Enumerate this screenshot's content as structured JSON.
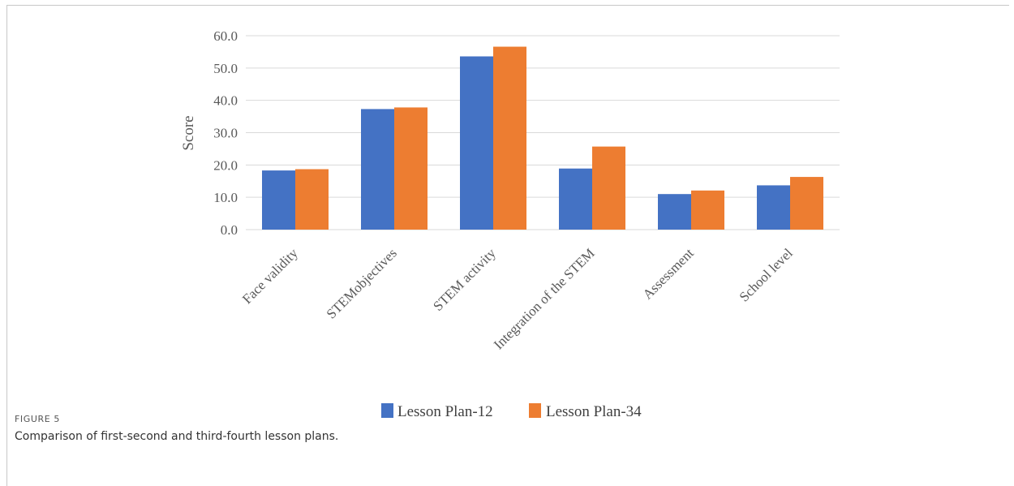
{
  "figure": {
    "label": "FIGURE 5",
    "caption": "Comparison of first-second and third-fourth lesson plans."
  },
  "chart_data": {
    "type": "bar",
    "title": "",
    "xlabel": "",
    "ylabel": "Score",
    "ylim": [
      0,
      60
    ],
    "yticks": [
      "0.0",
      "10.0",
      "20.0",
      "30.0",
      "40.0",
      "50.0",
      "60.0"
    ],
    "grid": "horizontal",
    "legend_position": "bottom",
    "categories": [
      "Face validity",
      "STEMobjectives",
      "STEM activity",
      "Integration of the STEM",
      "Assessment",
      "School level"
    ],
    "series": [
      {
        "name": "Lesson Plan-12",
        "color": "#4472c4",
        "values": [
          18.3,
          37.3,
          53.6,
          18.9,
          11.0,
          13.7
        ]
      },
      {
        "name": "Lesson Plan-34",
        "color": "#ed7d31",
        "values": [
          18.7,
          37.8,
          56.6,
          25.7,
          12.1,
          16.3
        ]
      }
    ]
  }
}
